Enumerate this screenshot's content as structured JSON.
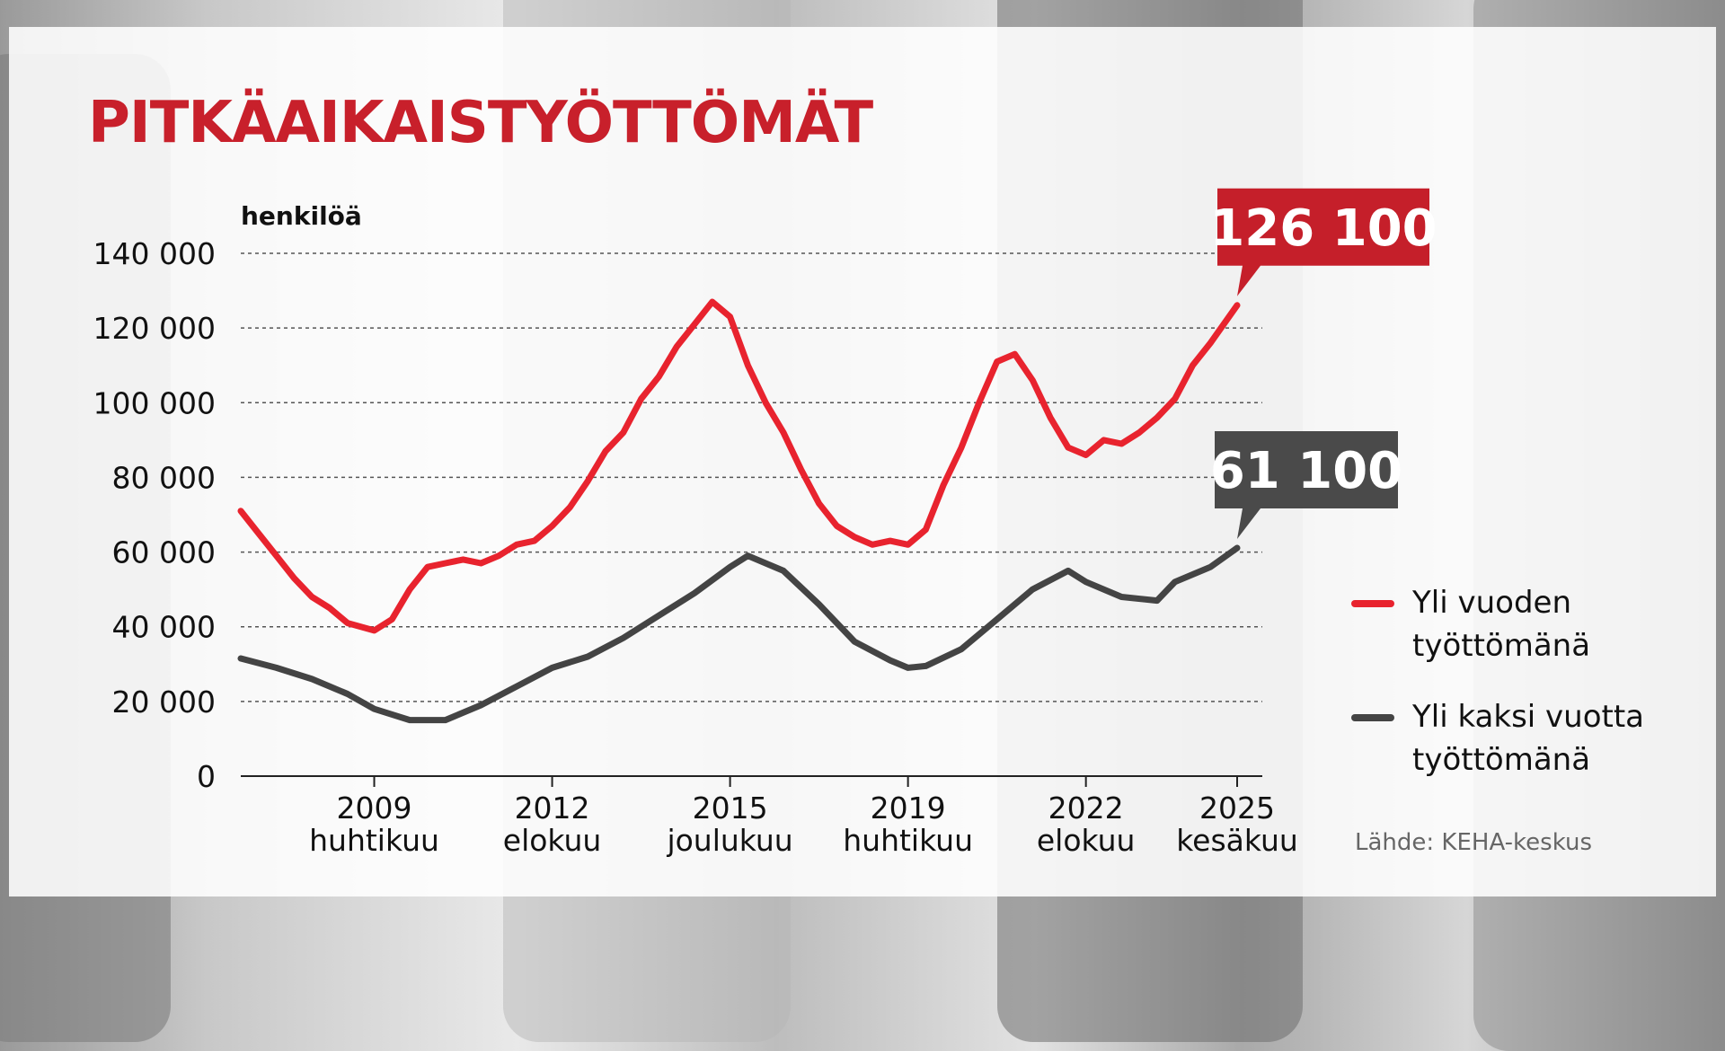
{
  "title": "PITKÄAIKAISTYÖTTÖMÄT",
  "source": "Lähde: KEHA-keskus",
  "colors": {
    "accent": "#d8202b",
    "title": "#c8202b",
    "secondary": "#444444",
    "grid": "#555555"
  },
  "chart_data": {
    "type": "line",
    "ylabel": "henkilöä",
    "ylim": [
      0,
      140000
    ],
    "yticks": [
      {
        "value": 140000,
        "label": "140 000"
      },
      {
        "value": 120000,
        "label": "120 000"
      },
      {
        "value": 100000,
        "label": "100 000"
      },
      {
        "value": 80000,
        "label": "80 000"
      },
      {
        "value": 60000,
        "label": "60 000"
      },
      {
        "value": 40000,
        "label": "40 000"
      },
      {
        "value": 20000,
        "label": "20 000"
      },
      {
        "value": 0,
        "label": "0"
      }
    ],
    "xlim": [
      "2006-10",
      "2025-06"
    ],
    "xticks": [
      {
        "date": "2009-04",
        "year": "2009",
        "month": "huhtikuu"
      },
      {
        "date": "2012-08",
        "year": "2012",
        "month": "elokuu"
      },
      {
        "date": "2015-12",
        "year": "2015",
        "month": "joulukuu"
      },
      {
        "date": "2019-04",
        "year": "2019",
        "month": "huhtikuu"
      },
      {
        "date": "2022-08",
        "year": "2022",
        "month": "elokuu"
      },
      {
        "date": "2025-06",
        "year": "2025",
        "month": "kesäkuu"
      }
    ],
    "grid": true,
    "legend_position": "right",
    "series": [
      {
        "name": "Yli vuoden työttömänä",
        "name_lines": [
          "Yli vuoden",
          "työttömänä"
        ],
        "color": "#e8232e",
        "last_label": "126 100",
        "points": [
          [
            "2006-10",
            71000
          ],
          [
            "2007-02",
            65000
          ],
          [
            "2007-06",
            59000
          ],
          [
            "2007-10",
            53000
          ],
          [
            "2008-02",
            48000
          ],
          [
            "2008-06",
            45000
          ],
          [
            "2008-10",
            41000
          ],
          [
            "2009-04",
            39000
          ],
          [
            "2009-08",
            42000
          ],
          [
            "2009-12",
            50000
          ],
          [
            "2010-04",
            56000
          ],
          [
            "2010-08",
            57000
          ],
          [
            "2010-12",
            58000
          ],
          [
            "2011-04",
            57000
          ],
          [
            "2011-08",
            59000
          ],
          [
            "2011-12",
            62000
          ],
          [
            "2012-04",
            63000
          ],
          [
            "2012-08",
            67000
          ],
          [
            "2012-12",
            72000
          ],
          [
            "2013-04",
            79000
          ],
          [
            "2013-08",
            87000
          ],
          [
            "2013-12",
            92000
          ],
          [
            "2014-04",
            101000
          ],
          [
            "2014-08",
            107000
          ],
          [
            "2014-12",
            115000
          ],
          [
            "2015-04",
            121000
          ],
          [
            "2015-08",
            127000
          ],
          [
            "2015-12",
            123000
          ],
          [
            "2016-04",
            110000
          ],
          [
            "2016-08",
            100000
          ],
          [
            "2016-12",
            92000
          ],
          [
            "2017-04",
            82000
          ],
          [
            "2017-08",
            73000
          ],
          [
            "2017-12",
            67000
          ],
          [
            "2018-04",
            64000
          ],
          [
            "2018-08",
            62000
          ],
          [
            "2018-12",
            63000
          ],
          [
            "2019-04",
            62000
          ],
          [
            "2019-08",
            66000
          ],
          [
            "2019-12",
            78000
          ],
          [
            "2020-04",
            88000
          ],
          [
            "2020-08",
            100000
          ],
          [
            "2020-12",
            111000
          ],
          [
            "2021-04",
            113000
          ],
          [
            "2021-08",
            106000
          ],
          [
            "2021-12",
            96000
          ],
          [
            "2022-04",
            88000
          ],
          [
            "2022-08",
            86000
          ],
          [
            "2022-12",
            90000
          ],
          [
            "2023-04",
            89000
          ],
          [
            "2023-08",
            92000
          ],
          [
            "2023-12",
            96000
          ],
          [
            "2024-04",
            101000
          ],
          [
            "2024-08",
            110000
          ],
          [
            "2024-12",
            116000
          ],
          [
            "2025-06",
            126100
          ]
        ]
      },
      {
        "name": "Yli kaksi vuotta työttömänä",
        "name_lines": [
          "Yli kaksi vuotta",
          "työttömänä"
        ],
        "color": "#444444",
        "last_label": "61 100",
        "points": [
          [
            "2006-10",
            31500
          ],
          [
            "2007-06",
            29000
          ],
          [
            "2008-02",
            26000
          ],
          [
            "2008-10",
            22000
          ],
          [
            "2009-04",
            18000
          ],
          [
            "2009-12",
            15000
          ],
          [
            "2010-08",
            15000
          ],
          [
            "2011-04",
            19000
          ],
          [
            "2011-12",
            24000
          ],
          [
            "2012-08",
            29000
          ],
          [
            "2013-04",
            32000
          ],
          [
            "2013-12",
            37000
          ],
          [
            "2014-08",
            43000
          ],
          [
            "2015-04",
            49000
          ],
          [
            "2015-12",
            56000
          ],
          [
            "2016-04",
            59000
          ],
          [
            "2016-12",
            55000
          ],
          [
            "2017-08",
            46000
          ],
          [
            "2018-04",
            36000
          ],
          [
            "2018-12",
            31000
          ],
          [
            "2019-04",
            29000
          ],
          [
            "2019-08",
            29500
          ],
          [
            "2020-04",
            34000
          ],
          [
            "2020-12",
            42000
          ],
          [
            "2021-08",
            50000
          ],
          [
            "2022-04",
            55000
          ],
          [
            "2022-08",
            52000
          ],
          [
            "2023-04",
            48000
          ],
          [
            "2023-12",
            47000
          ],
          [
            "2024-04",
            52000
          ],
          [
            "2024-12",
            56000
          ],
          [
            "2025-06",
            61100
          ]
        ]
      }
    ]
  }
}
